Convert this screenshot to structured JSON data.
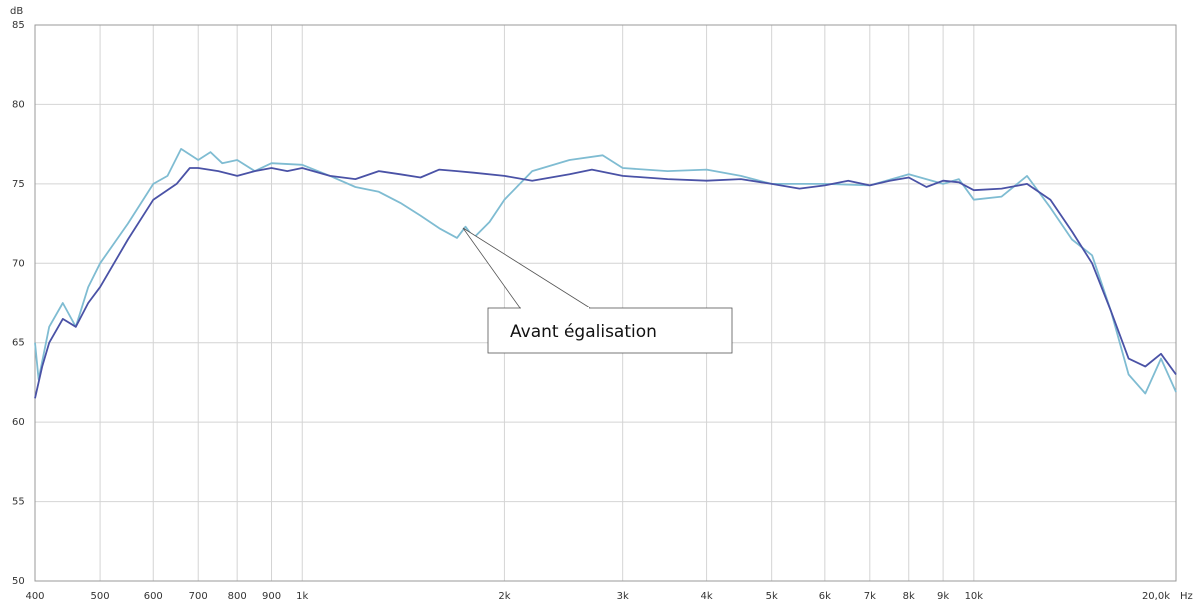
{
  "chart_data": {
    "type": "line",
    "y_label": "dB",
    "x_label": "Hz",
    "xscale": "log",
    "grid": true,
    "xlim": [
      400,
      20000
    ],
    "ylim": [
      50,
      85
    ],
    "xticks": [
      400,
      500,
      600,
      700,
      800,
      900,
      {
        "value": 1000,
        "label": "1k"
      },
      {
        "value": 2000,
        "label": "2k"
      },
      {
        "value": 3000,
        "label": "3k"
      },
      {
        "value": 4000,
        "label": "4k"
      },
      {
        "value": 5000,
        "label": "5k"
      },
      {
        "value": 6000,
        "label": "6k"
      },
      {
        "value": 7000,
        "label": "7k"
      },
      {
        "value": 8000,
        "label": "8k"
      },
      {
        "value": 9000,
        "label": "9k"
      },
      {
        "value": 10000,
        "label": "10k"
      },
      {
        "value": 20000,
        "label": "20,0k"
      }
    ],
    "yticks": [
      50,
      55,
      60,
      65,
      70,
      75,
      80,
      85
    ],
    "annotation": "Avant égalisation",
    "series": [
      {
        "color": "#7fbcd2",
        "x": [
          400,
          405,
          420,
          440,
          460,
          480,
          500,
          550,
          600,
          630,
          660,
          700,
          730,
          760,
          800,
          850,
          900,
          1000,
          1100,
          1200,
          1300,
          1400,
          1500,
          1600,
          1700,
          1750,
          1800,
          1900,
          2000,
          2200,
          2500,
          2800,
          3000,
          3500,
          4000,
          4500,
          5000,
          6000,
          7000,
          8000,
          9000,
          9500,
          10000,
          11000,
          12000,
          13000,
          14000,
          15000,
          16000,
          17000,
          18000,
          19000,
          20000
        ],
        "values": [
          65,
          62.7,
          66,
          67.5,
          66,
          68.5,
          70,
          72.5,
          75,
          75.5,
          77.2,
          76.5,
          77,
          76.3,
          76.5,
          75.8,
          76.3,
          76.2,
          75.5,
          74.8,
          74.5,
          73.8,
          73,
          72.2,
          71.6,
          72.3,
          71.6,
          72.6,
          74,
          75.8,
          76.5,
          76.8,
          76,
          75.8,
          75.9,
          75.5,
          75,
          75,
          74.9,
          75.6,
          75,
          75.3,
          74,
          74.2,
          75.5,
          73.5,
          71.5,
          70.5,
          67,
          63,
          61.8,
          64,
          61.9
        ]
      },
      {
        "color": "#4a52a6",
        "x": [
          400,
          410,
          420,
          440,
          460,
          480,
          500,
          550,
          600,
          650,
          680,
          700,
          750,
          800,
          850,
          900,
          950,
          1000,
          1100,
          1200,
          1300,
          1400,
          1500,
          1600,
          1700,
          1800,
          2000,
          2200,
          2500,
          2700,
          3000,
          3500,
          4000,
          4500,
          5000,
          5500,
          6000,
          6500,
          7000,
          7500,
          8000,
          8500,
          9000,
          9500,
          10000,
          11000,
          12000,
          13000,
          14000,
          15000,
          16000,
          17000,
          18000,
          19000,
          20000
        ],
        "values": [
          61.5,
          63.5,
          65,
          66.5,
          66,
          67.5,
          68.5,
          71.5,
          74,
          75,
          76,
          76,
          75.8,
          75.5,
          75.8,
          76,
          75.8,
          76,
          75.5,
          75.3,
          75.8,
          75.6,
          75.4,
          75.9,
          75.8,
          75.7,
          75.5,
          75.2,
          75.6,
          75.9,
          75.5,
          75.3,
          75.2,
          75.3,
          75,
          74.7,
          74.9,
          75.2,
          74.9,
          75.2,
          75.4,
          74.8,
          75.2,
          75.1,
          74.6,
          74.7,
          75,
          74,
          72,
          70,
          67,
          64,
          63.5,
          64.3,
          63
        ]
      }
    ]
  }
}
